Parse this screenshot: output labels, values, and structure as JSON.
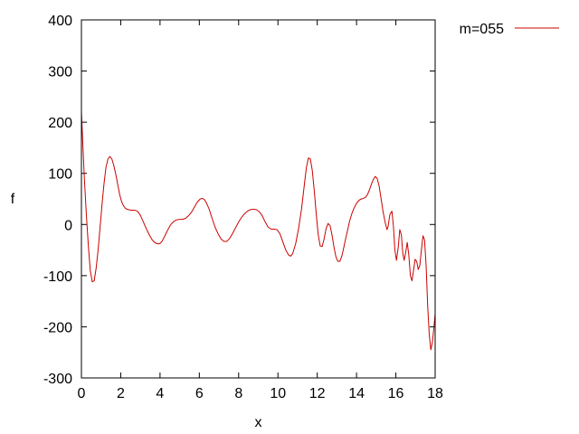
{
  "chart_data": {
    "type": "line",
    "title": "",
    "xlabel": "x",
    "ylabel": "f",
    "xlim": [
      0,
      18
    ],
    "ylim": [
      -300,
      400
    ],
    "xticks": [
      0,
      2,
      4,
      6,
      8,
      10,
      12,
      14,
      16,
      18
    ],
    "yticks": [
      -300,
      -200,
      -100,
      0,
      100,
      200,
      300,
      400
    ],
    "grid": false,
    "legend_position": "outside-top-right",
    "series": [
      {
        "name": "m=055",
        "color": "#cc0000",
        "x": [
          0,
          0.08,
          0.15,
          0.25,
          0.35,
          0.45,
          0.55,
          0.65,
          0.75,
          0.85,
          0.95,
          1.05,
          1.15,
          1.25,
          1.35,
          1.45,
          1.55,
          1.65,
          1.75,
          1.85,
          1.95,
          2.05,
          2.15,
          2.25,
          2.4,
          2.55,
          2.7,
          2.85,
          3.0,
          3.15,
          3.3,
          3.45,
          3.6,
          3.75,
          3.9,
          4.0,
          4.1,
          4.25,
          4.4,
          4.55,
          4.7,
          4.85,
          5.0,
          5.15,
          5.3,
          5.45,
          5.6,
          5.75,
          5.9,
          6.05,
          6.15,
          6.25,
          6.35,
          6.5,
          6.65,
          6.8,
          6.95,
          7.1,
          7.25,
          7.4,
          7.55,
          7.7,
          7.85,
          8.0,
          8.15,
          8.3,
          8.45,
          8.6,
          8.75,
          8.9,
          9.05,
          9.2,
          9.35,
          9.5,
          9.65,
          9.8,
          9.95,
          10.1,
          10.25,
          10.4,
          10.55,
          10.65,
          10.75,
          10.9,
          11.05,
          11.2,
          11.35,
          11.45,
          11.55,
          11.65,
          11.75,
          11.85,
          11.95,
          12.05,
          12.15,
          12.25,
          12.35,
          12.45,
          12.55,
          12.65,
          12.75,
          12.85,
          12.95,
          13.05,
          13.15,
          13.25,
          13.35,
          13.45,
          13.55,
          13.65,
          13.75,
          13.85,
          13.95,
          14.05,
          14.15,
          14.25,
          14.35,
          14.45,
          14.55,
          14.65,
          14.75,
          14.85,
          14.95,
          15.05,
          15.15,
          15.25,
          15.35,
          15.45,
          15.55,
          15.6,
          15.7,
          15.8,
          15.88,
          15.95,
          16.03,
          16.12,
          16.2,
          16.28,
          16.35,
          16.42,
          16.5,
          16.58,
          16.66,
          16.74,
          16.82,
          16.9,
          16.98,
          17.06,
          17.14,
          17.22,
          17.3,
          17.38,
          17.46,
          17.54,
          17.62,
          17.7,
          17.78,
          17.86,
          17.94,
          18.0
        ],
        "y": [
          220,
          150,
          90,
          20,
          -40,
          -90,
          -112,
          -110,
          -85,
          -50,
          -5,
          40,
          80,
          112,
          128,
          133,
          128,
          115,
          98,
          78,
          58,
          44,
          36,
          31,
          29,
          28,
          28,
          26,
          18,
          5,
          -8,
          -20,
          -30,
          -36,
          -38,
          -37,
          -33,
          -22,
          -10,
          0,
          6,
          9,
          10,
          10,
          12,
          17,
          24,
          34,
          44,
          50,
          51,
          49,
          43,
          30,
          12,
          -5,
          -18,
          -28,
          -33,
          -33,
          -27,
          -17,
          -6,
          5,
          14,
          21,
          26,
          29,
          30,
          29,
          25,
          17,
          5,
          -5,
          -9,
          -9,
          -10,
          -18,
          -34,
          -50,
          -60,
          -62,
          -57,
          -38,
          -8,
          30,
          80,
          112,
          130,
          128,
          105,
          65,
          20,
          -20,
          -42,
          -43,
          -28,
          -8,
          2,
          -2,
          -20,
          -44,
          -63,
          -72,
          -72,
          -62,
          -45,
          -27,
          -10,
          7,
          20,
          30,
          38,
          44,
          48,
          50,
          51,
          53,
          58,
          67,
          78,
          88,
          94,
          90,
          75,
          50,
          25,
          5,
          -10,
          -5,
          20,
          26,
          -5,
          -50,
          -70,
          -45,
          -10,
          -20,
          -55,
          -70,
          -55,
          -35,
          -60,
          -100,
          -110,
          -90,
          -68,
          -72,
          -88,
          -80,
          -50,
          -22,
          -30,
          -80,
          -160,
          -215,
          -245,
          -230,
          -200,
          -175
        ]
      }
    ]
  }
}
